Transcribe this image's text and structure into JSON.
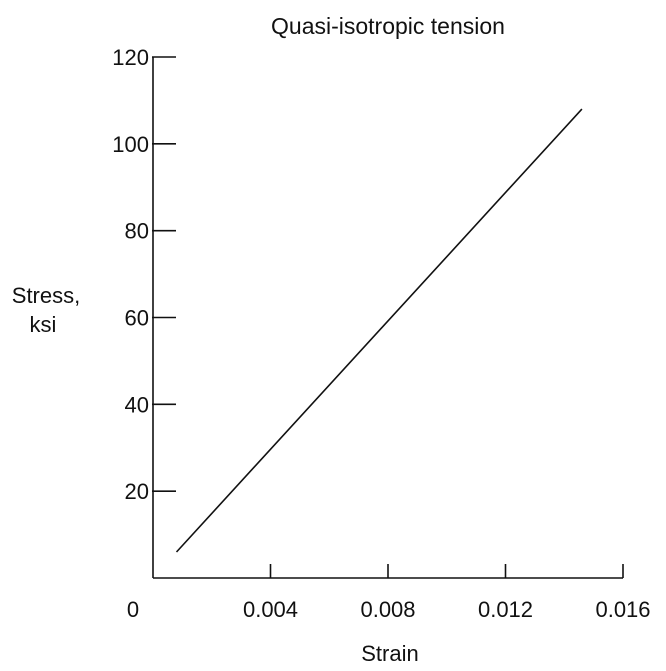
{
  "chart_data": {
    "type": "line",
    "title": "Quasi-isotropic tension",
    "xlabel": "Strain",
    "ylabel_lines": [
      "Stress,",
      "ksi"
    ],
    "xlim": [
      0,
      0.016
    ],
    "ylim": [
      0,
      120
    ],
    "x_ticks": [
      0,
      0.004,
      0.008,
      0.012,
      0.016
    ],
    "x_tick_labels": [
      "0",
      "0.004",
      "0.008",
      "0.012",
      "0.016"
    ],
    "y_ticks": [
      20,
      40,
      60,
      80,
      100,
      120
    ],
    "y_tick_labels": [
      "20",
      "40",
      "60",
      "80",
      "100",
      "120"
    ],
    "grid": false,
    "series": [
      {
        "x": [
          0.0008,
          0.0146
        ],
        "y": [
          6,
          108
        ]
      }
    ]
  }
}
